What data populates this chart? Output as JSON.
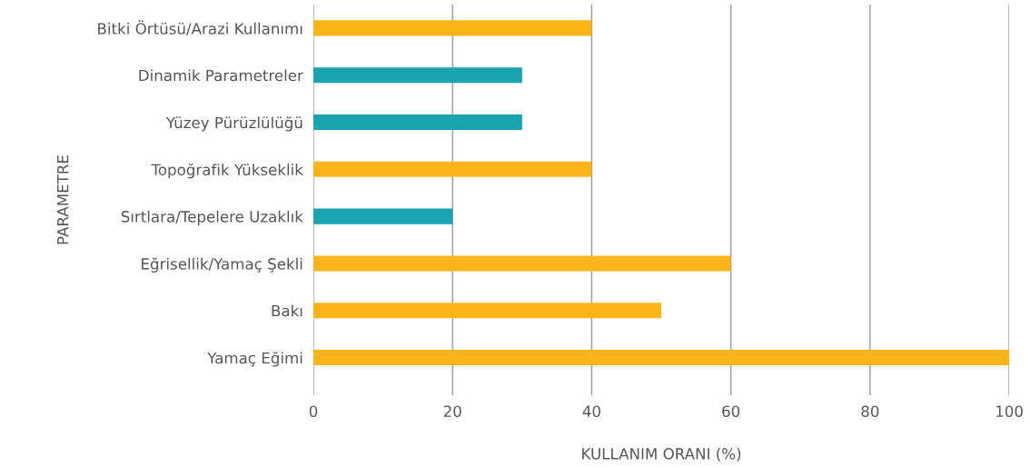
{
  "chart_data": {
    "type": "bar",
    "orientation": "horizontal",
    "xlabel": "KULLANIM ORANI (%)",
    "ylabel": "PARAMETRE",
    "categories": [
      "Bitki Örtüsü/Arazi Kullanımı",
      "Dinamik Parametreler",
      "Yüzey Pürüzlülüğü",
      "Topoğrafik Yükseklik",
      "Sırtlara/Tepelere Uzaklık",
      "Eğrisellik/Yamaç Şekli",
      "Bakı",
      "Yamaç Eğimi"
    ],
    "values": [
      40,
      30,
      30,
      40,
      20,
      60,
      50,
      100
    ],
    "colors": [
      "#fbb41a",
      "#1ba3b0",
      "#1ba3b0",
      "#fbb41a",
      "#1ba3b0",
      "#fbb41a",
      "#fbb41a",
      "#fbb41a"
    ],
    "xlim": [
      0,
      100
    ],
    "xticks": [
      0,
      20,
      40,
      60,
      80,
      100
    ],
    "grid": "x"
  }
}
